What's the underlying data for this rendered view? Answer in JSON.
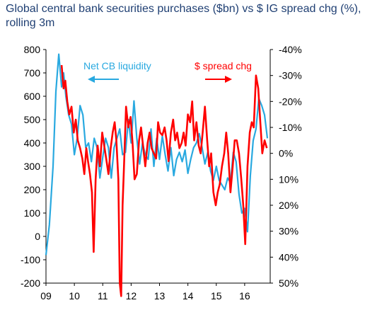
{
  "chart_data": {
    "type": "line",
    "title": "Global central bank securities purchases ($bn) vs $ IG spread chg (%), rolling 3m",
    "x_ticks": [
      "09",
      "10",
      "11",
      "12",
      "13",
      "14",
      "15",
      "16"
    ],
    "y_left": {
      "ticks": [
        "800",
        "700",
        "600",
        "500",
        "400",
        "300",
        "200",
        "100",
        "0",
        "-100",
        "-200"
      ],
      "range": [
        -200,
        800
      ]
    },
    "y_right": {
      "inverted": true,
      "ticks": [
        "-40%",
        "-30%",
        "-20%",
        "-10%",
        "0%",
        "10%",
        "20%",
        "30%",
        "40%",
        "50%"
      ],
      "range": [
        -40,
        50
      ]
    },
    "annotations": [
      {
        "text": "Net CB liquidity",
        "color": "#29a9e0"
      },
      {
        "text": "$ spread chg",
        "color": "#ff0000"
      }
    ],
    "series": [
      {
        "name": "Net CB liquidity",
        "axis": "left",
        "color": "#29a9e0",
        "x": [
          2009.0,
          2009.12,
          2009.25,
          2009.35,
          2009.45,
          2009.55,
          2009.62,
          2009.7,
          2009.8,
          2009.9,
          2010.0,
          2010.1,
          2010.2,
          2010.3,
          2010.4,
          2010.5,
          2010.6,
          2010.7,
          2010.8,
          2010.9,
          2011.0,
          2011.1,
          2011.2,
          2011.3,
          2011.4,
          2011.5,
          2011.6,
          2011.7,
          2011.8,
          2011.9,
          2012.0,
          2012.1,
          2012.2,
          2012.3,
          2012.4,
          2012.5,
          2012.6,
          2012.7,
          2012.8,
          2012.9,
          2013.0,
          2013.1,
          2013.2,
          2013.3,
          2013.4,
          2013.5,
          2013.6,
          2013.7,
          2013.8,
          2013.9,
          2014.0,
          2014.1,
          2014.2,
          2014.3,
          2014.4,
          2014.5,
          2014.6,
          2014.7,
          2014.8,
          2014.9,
          2015.0,
          2015.1,
          2015.2,
          2015.3,
          2015.4,
          2015.5,
          2015.6,
          2015.7,
          2015.8,
          2015.9,
          2016.0,
          2016.1,
          2016.2,
          2016.3,
          2016.4,
          2016.5,
          2016.6,
          2016.7,
          2016.8
        ],
        "y": [
          -80,
          50,
          300,
          620,
          780,
          640,
          700,
          600,
          520,
          480,
          350,
          420,
          560,
          520,
          380,
          400,
          320,
          420,
          380,
          250,
          340,
          420,
          380,
          250,
          380,
          420,
          460,
          350,
          360,
          500,
          400,
          580,
          420,
          310,
          400,
          350,
          330,
          460,
          300,
          420,
          330,
          430,
          350,
          280,
          380,
          260,
          330,
          360,
          320,
          370,
          270,
          330,
          380,
          400,
          440,
          380,
          310,
          360,
          280,
          240,
          300,
          240,
          220,
          200,
          250,
          230,
          360,
          320,
          180,
          100,
          120,
          20,
          260,
          410,
          460,
          590,
          560,
          520,
          420
        ]
      },
      {
        "name": "$ spread chg",
        "axis": "right",
        "color": "#ff0000",
        "x": [
          2009.55,
          2009.62,
          2009.68,
          2009.75,
          2009.82,
          2009.9,
          2009.98,
          2010.05,
          2010.12,
          2010.2,
          2010.28,
          2010.35,
          2010.42,
          2010.48,
          2010.55,
          2010.62,
          2010.68,
          2010.75,
          2010.82,
          2010.9,
          2010.98,
          2011.05,
          2011.12,
          2011.2,
          2011.28,
          2011.35,
          2011.42,
          2011.48,
          2011.55,
          2011.6,
          2011.65,
          2011.7,
          2011.75,
          2011.82,
          2011.9,
          2011.98,
          2012.05,
          2012.12,
          2012.2,
          2012.28,
          2012.35,
          2012.42,
          2012.5,
          2012.58,
          2012.65,
          2012.72,
          2012.8,
          2012.88,
          2012.95,
          2013.02,
          2013.1,
          2013.18,
          2013.25,
          2013.32,
          2013.4,
          2013.48,
          2013.55,
          2013.62,
          2013.7,
          2013.78,
          2013.85,
          2013.92,
          2014.0,
          2014.08,
          2014.15,
          2014.22,
          2014.3,
          2014.38,
          2014.45,
          2014.52,
          2014.6,
          2014.68,
          2014.75,
          2014.82,
          2014.9,
          2014.98,
          2015.05,
          2015.12,
          2015.2,
          2015.28,
          2015.35,
          2015.42,
          2015.5,
          2015.58,
          2015.65,
          2015.72,
          2015.8,
          2015.88,
          2015.95,
          2016.02,
          2016.1,
          2016.18,
          2016.25,
          2016.32,
          2016.4,
          2016.48,
          2016.55,
          2016.62,
          2016.7,
          2016.78
        ],
        "y": [
          -34,
          -25,
          -28,
          -20,
          -15,
          -18,
          -8,
          -13,
          -5,
          -2,
          2,
          8,
          -2,
          3,
          8,
          15,
          38,
          10,
          -3,
          5,
          -8,
          -3,
          2,
          8,
          -2,
          -8,
          -12,
          -5,
          10,
          50,
          55,
          20,
          5,
          -18,
          -10,
          -14,
          -4,
          10,
          8,
          -5,
          -10,
          -3,
          5,
          -4,
          -8,
          -2,
          0,
          2,
          -12,
          -8,
          -7,
          -10,
          -5,
          3,
          -8,
          -13,
          -5,
          -8,
          -2,
          -4,
          -8,
          -3,
          -15,
          -12,
          -20,
          -5,
          -12,
          -3,
          0,
          -8,
          -18,
          -5,
          5,
          0,
          15,
          20,
          15,
          12,
          5,
          0,
          -8,
          0,
          15,
          5,
          -5,
          -5,
          0,
          10,
          20,
          35,
          5,
          -8,
          -12,
          -10,
          -30,
          -25,
          -12,
          0,
          -5,
          -2
        ]
      }
    ]
  }
}
